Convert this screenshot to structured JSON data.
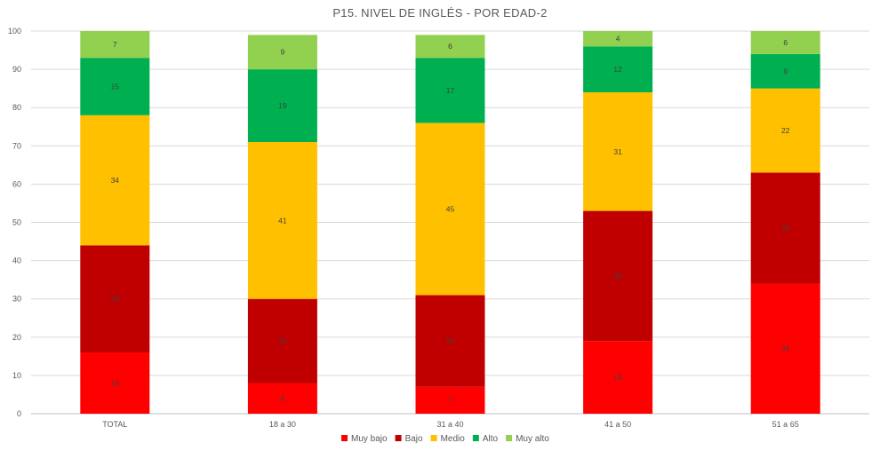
{
  "chart_data": {
    "type": "bar",
    "stacked": true,
    "title": "P15. NIVEL DE INGLÉS - POR EDAD-2",
    "xlabel": "",
    "ylabel": "",
    "ylim": [
      0,
      100
    ],
    "yticks": [
      "0",
      "10",
      "20",
      "30",
      "40",
      "50",
      "60",
      "70",
      "80",
      "90",
      "100"
    ],
    "grid": true,
    "legend_position": "bottom",
    "categories": [
      "TOTAL",
      "18 a 30",
      "31 a 40",
      "41 a 50",
      "51 a 65"
    ],
    "series": [
      {
        "name": "Muy bajo",
        "color": "#ff0000",
        "values": [
          16,
          8,
          7,
          19,
          34
        ]
      },
      {
        "name": "Bajo",
        "color": "#c00000",
        "values": [
          28,
          22,
          24,
          34,
          29
        ]
      },
      {
        "name": "Medio",
        "color": "#ffc000",
        "values": [
          34,
          41,
          45,
          31,
          22
        ]
      },
      {
        "name": "Alto",
        "color": "#00b050",
        "values": [
          15,
          19,
          17,
          12,
          9
        ]
      },
      {
        "name": "Muy alto",
        "color": "#92d050",
        "values": [
          7,
          9,
          6,
          4,
          6
        ]
      }
    ]
  }
}
